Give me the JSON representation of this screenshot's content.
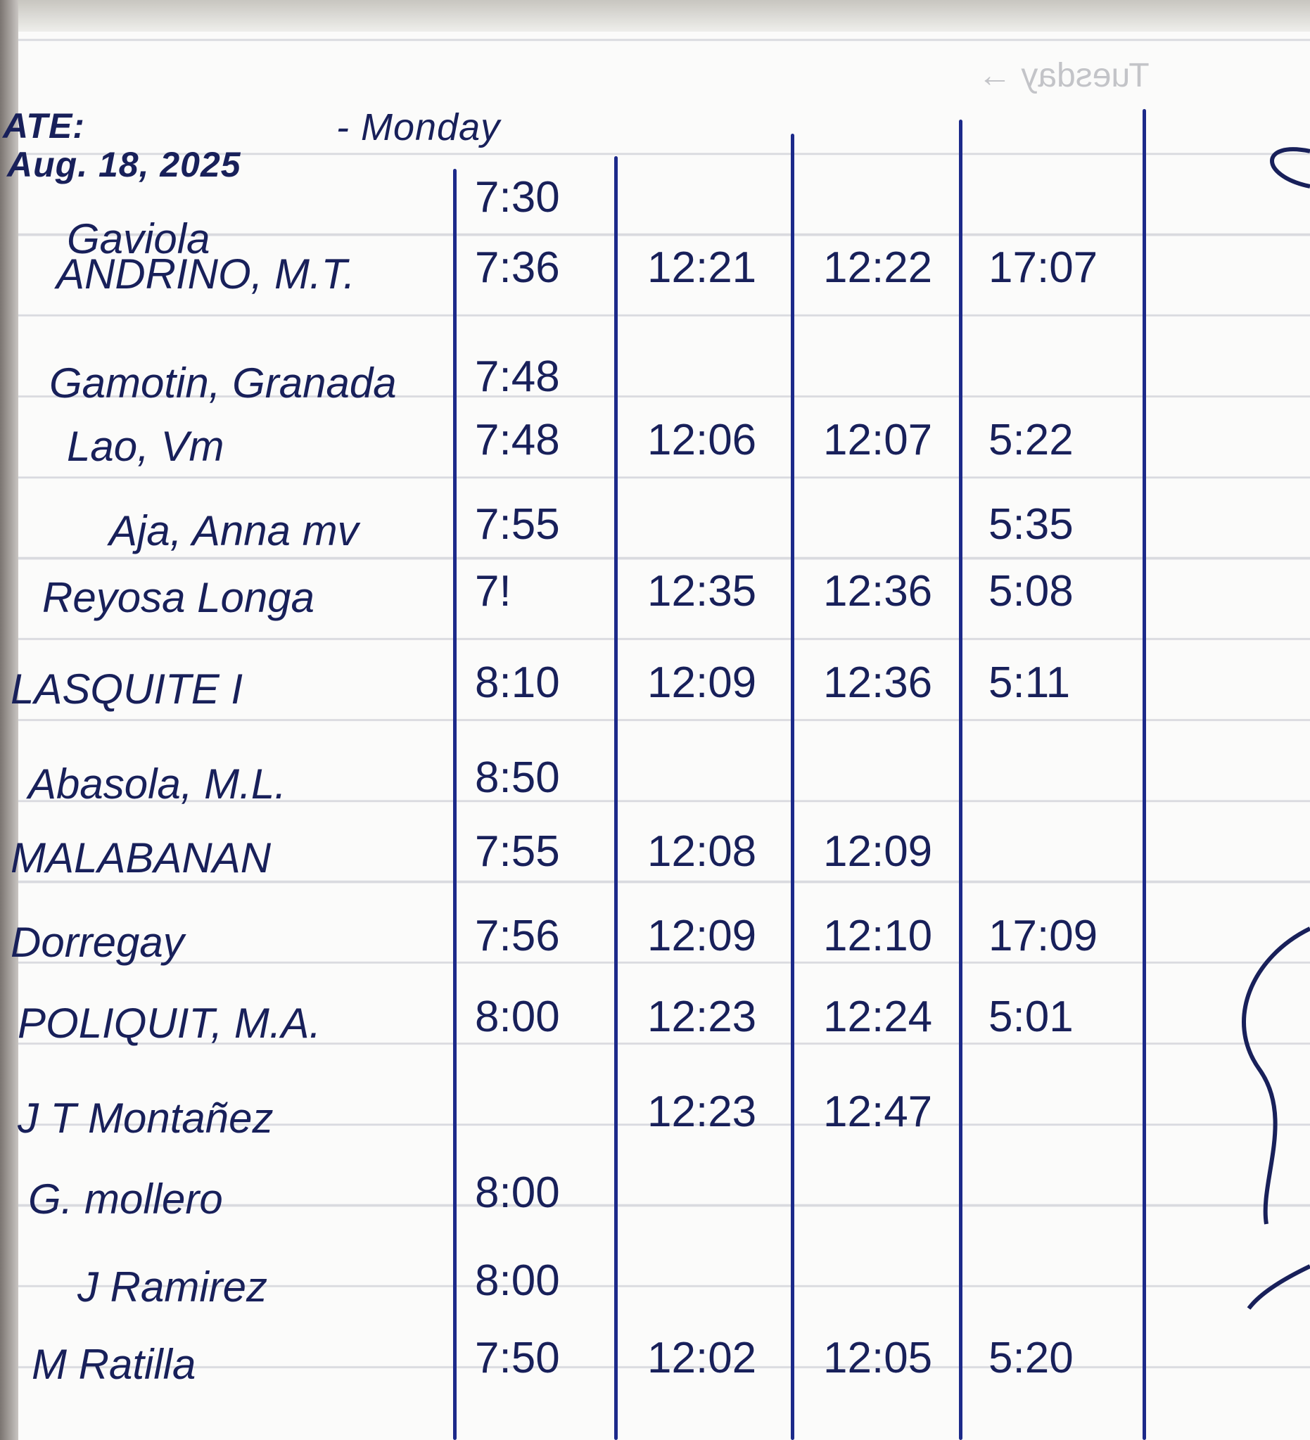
{
  "header": {
    "date_label": "ATE:",
    "date": "Aug. 18, 2025",
    "day": "- Monday",
    "faint_next_page": "Tuesday →"
  },
  "rows": [
    {
      "name": "Gaviola",
      "times": [
        "7:30",
        "",
        "",
        ""
      ]
    },
    {
      "name": "ANDRINO, M.T.",
      "times": [
        "7:36",
        "12:21",
        "12:22",
        "17:07"
      ]
    },
    {
      "name": "Gamotin, Granada",
      "times": [
        "7:48",
        "",
        "",
        ""
      ]
    },
    {
      "name": "Lao, Vm",
      "times": [
        "7:48",
        "12:06",
        "12:07",
        "5:22"
      ]
    },
    {
      "name": "Aja, Anna mv",
      "times": [
        "7:55",
        "",
        "",
        "5:35"
      ]
    },
    {
      "name": "Reyosa Longa",
      "times": [
        "7!",
        "12:35",
        "12:36",
        "5:08"
      ]
    },
    {
      "name": "LASQUITE I",
      "times": [
        "8:10",
        "12:09",
        "12:36",
        "5:11"
      ]
    },
    {
      "name": "Abasola, M.L.",
      "times": [
        "8:50",
        "",
        "",
        ""
      ]
    },
    {
      "name": "MALABANAN",
      "times": [
        "7:55",
        "12:08",
        "12:09",
        ""
      ]
    },
    {
      "name": "Dorregay",
      "times": [
        "7:56",
        "12:09",
        "12:10",
        "17:09"
      ]
    },
    {
      "name": "POLIQUIT, M.A.",
      "times": [
        "8:00",
        "12:23",
        "12:24",
        "5:01"
      ]
    },
    {
      "name": "J T Montañez",
      "times": [
        "",
        "12:23",
        "12:47",
        ""
      ]
    },
    {
      "name": "G. mollero",
      "times": [
        "8:00",
        "",
        "",
        ""
      ]
    },
    {
      "name": "J Ramirez",
      "times": [
        "8:00",
        "",
        "",
        ""
      ]
    },
    {
      "name": "M Ratilla",
      "times": [
        "7:50",
        "12:02",
        "12:05",
        "5:20"
      ]
    }
  ],
  "colors": {
    "ink": "#18205a",
    "ruling": "#1c2a8a",
    "paper": "#fbfbfa"
  }
}
